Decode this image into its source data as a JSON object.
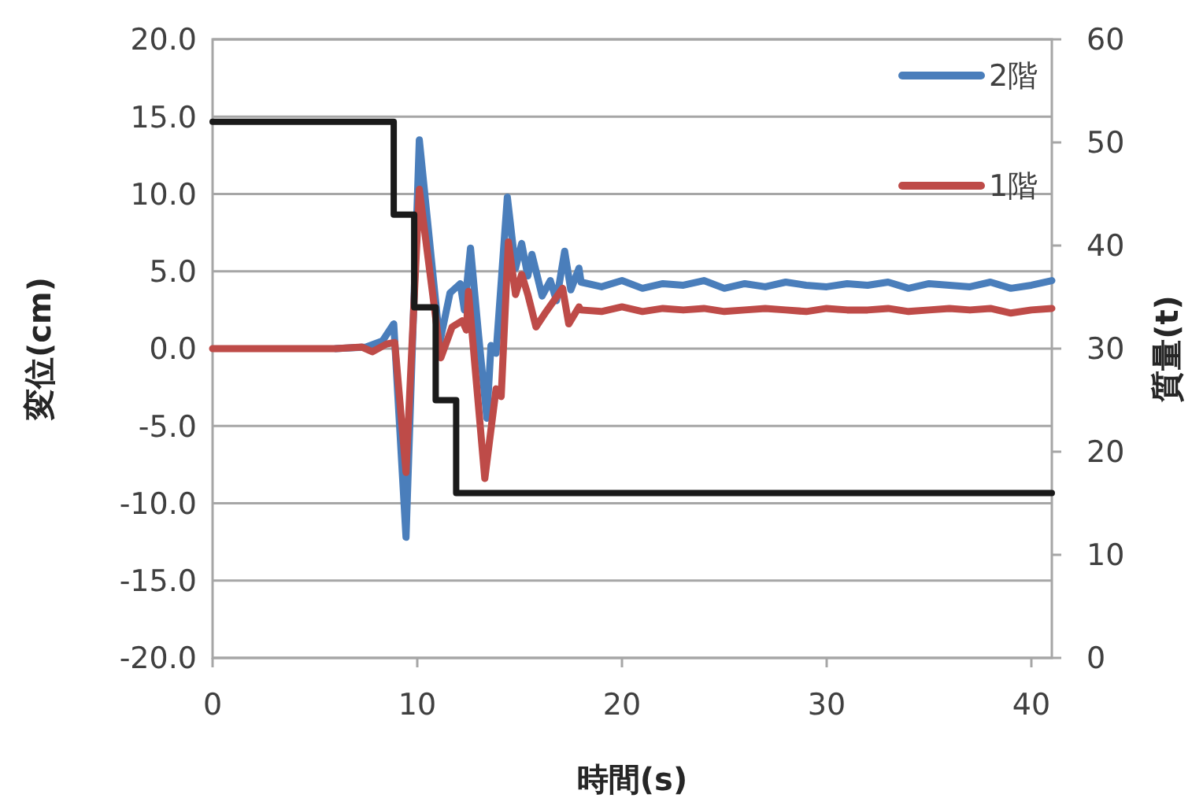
{
  "chart_data": {
    "type": "line",
    "xlabel": "時間(s)",
    "ylabel": "変位(cm)",
    "y2label": "質量(t)",
    "xlim": [
      0,
      41
    ],
    "xticks": [
      0,
      10,
      20,
      30,
      40
    ],
    "ylim": [
      -20,
      20
    ],
    "yticks": [
      {
        "value": -20,
        "label": "-20.0"
      },
      {
        "value": -15,
        "label": "-15.0"
      },
      {
        "value": -10,
        "label": "-10.0"
      },
      {
        "value": -5,
        "label": "-5.0"
      },
      {
        "value": 0,
        "label": "0.0"
      },
      {
        "value": 5,
        "label": "5.0"
      },
      {
        "value": 10,
        "label": "10.0"
      },
      {
        "value": 15,
        "label": "15.0"
      },
      {
        "value": 20,
        "label": "20.0"
      }
    ],
    "y2lim": [
      0,
      60
    ],
    "y2ticks": [
      0,
      10,
      20,
      30,
      40,
      50,
      60
    ],
    "grid": "y",
    "legend": "top right",
    "line_style": "solid",
    "marker": "none",
    "series": [
      {
        "name": "2階",
        "color": "#4a7ebb",
        "x": [
          6,
          7.5,
          8.3,
          8.85,
          9.45,
          10.1,
          11.1,
          11.6,
          12.1,
          12.3,
          12.6,
          13.0,
          13.4,
          13.6,
          13.85,
          14.4,
          14.8,
          15.1,
          15.4,
          15.6,
          16.1,
          16.5,
          16.8,
          17.2,
          17.5,
          17.9,
          18,
          19,
          20,
          21,
          22,
          23,
          24,
          25,
          26,
          27,
          28,
          29,
          30,
          31,
          32,
          33,
          34,
          35,
          36,
          37,
          38,
          39,
          40,
          41
        ],
        "values": [
          0,
          0.1,
          0.5,
          1.6,
          -12.2,
          13.5,
          0.4,
          3.6,
          4.2,
          2.5,
          6.5,
          0.8,
          -4.5,
          0.2,
          -0.3,
          9.8,
          5.2,
          6.8,
          4.7,
          6.1,
          3.4,
          4.4,
          3.1,
          6.3,
          3.8,
          5.2,
          4.3,
          4.0,
          4.4,
          3.9,
          4.2,
          4.1,
          4.4,
          3.9,
          4.2,
          4.0,
          4.3,
          4.1,
          4.0,
          4.2,
          4.1,
          4.3,
          3.9,
          4.2,
          4.1,
          4.0,
          4.3,
          3.9,
          4.1,
          4.4
        ]
      },
      {
        "name": "1階",
        "color": "#be4b48",
        "x": [
          0,
          2,
          4,
          6,
          7.3,
          7.8,
          8.5,
          8.9,
          9.45,
          10.1,
          11.15,
          11.7,
          12.2,
          12.4,
          12.5,
          13.3,
          13.85,
          14.1,
          14.45,
          14.8,
          15.1,
          15.4,
          15.8,
          16.3,
          17.1,
          17.4,
          17.9,
          18,
          19,
          20,
          21,
          22,
          23,
          24,
          25,
          26,
          27,
          28,
          29,
          30,
          31,
          32,
          33,
          34,
          35,
          36,
          37,
          38,
          39,
          40,
          41
        ],
        "values": [
          0,
          0,
          0,
          0,
          0.1,
          -0.2,
          0.3,
          0.4,
          -8.0,
          10.3,
          -0.6,
          1.4,
          1.8,
          1.2,
          3.7,
          -8.4,
          -2.6,
          -3.1,
          6.9,
          3.5,
          4.8,
          3.5,
          1.4,
          2.4,
          3.9,
          1.6,
          2.7,
          2.5,
          2.4,
          2.7,
          2.4,
          2.6,
          2.5,
          2.6,
          2.4,
          2.5,
          2.6,
          2.5,
          2.4,
          2.6,
          2.5,
          2.5,
          2.6,
          2.4,
          2.5,
          2.6,
          2.5,
          2.6,
          2.3,
          2.5,
          2.6
        ]
      },
      {
        "type": "step",
        "axis": "y2",
        "color": "#1a1a1a",
        "x": [
          0,
          8.85,
          9.85,
          10.9,
          11.9,
          41
        ],
        "values": [
          52,
          43,
          34,
          25,
          16,
          16
        ]
      }
    ]
  }
}
